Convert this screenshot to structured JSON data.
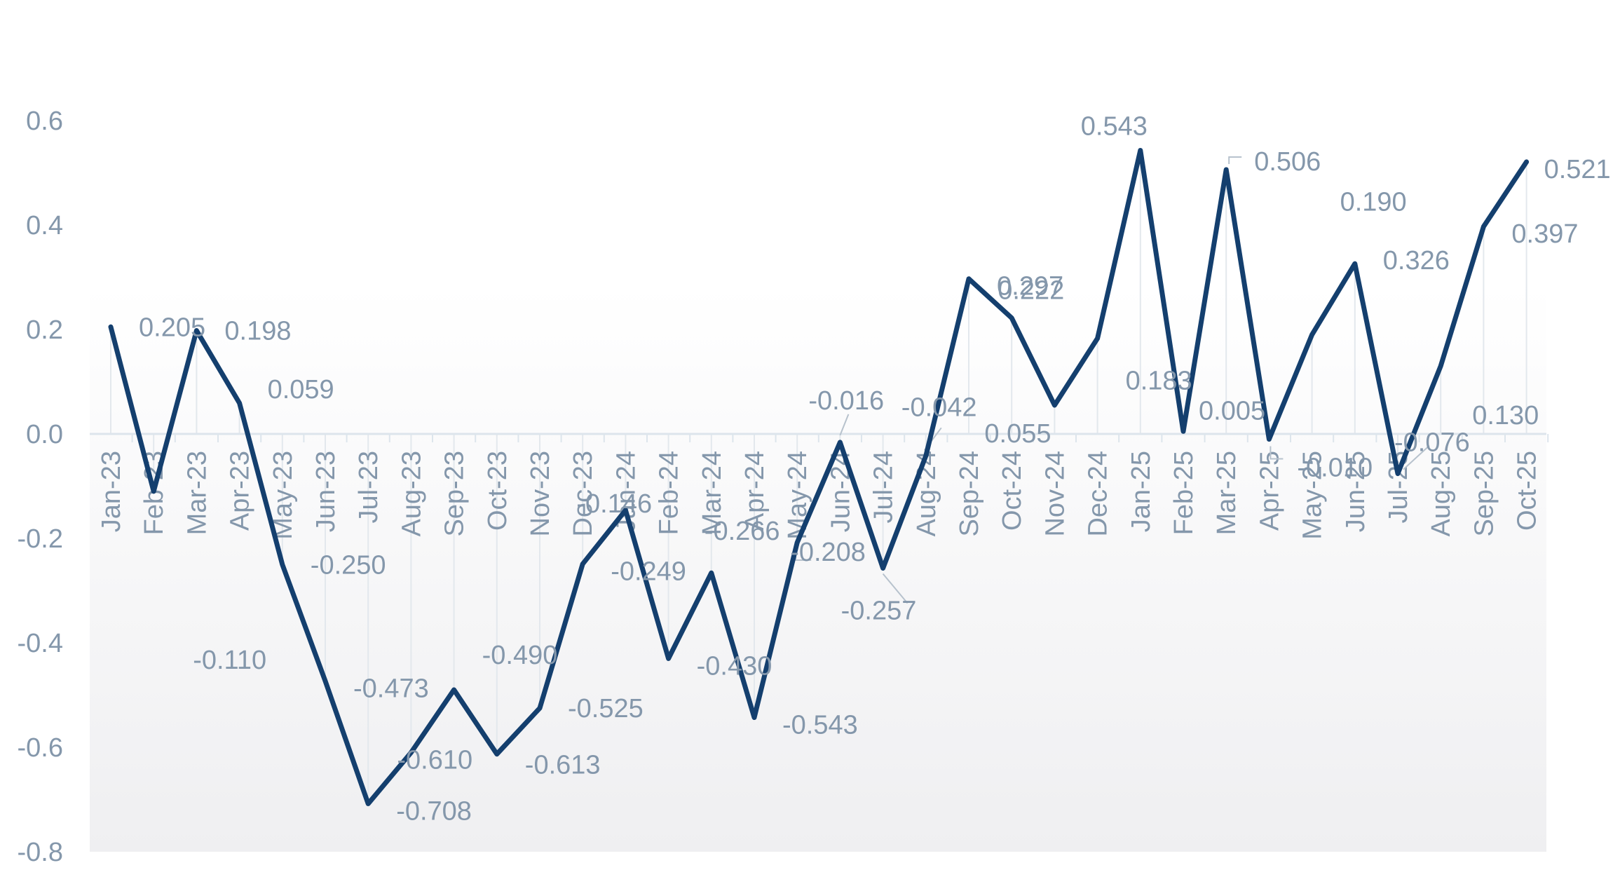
{
  "chart_data": {
    "type": "line",
    "title": "",
    "xlabel": "",
    "ylabel": "",
    "ylim": [
      -0.8,
      0.6
    ],
    "yticks": [
      "0.6",
      "0.4",
      "0.2",
      "0.0",
      "-0.2",
      "-0.4",
      "-0.6",
      "-0.8"
    ],
    "grid": false,
    "legend": "none",
    "line_color": "#143f6e",
    "categories": [
      "Jan-23",
      "Feb-23",
      "Mar-23",
      "Apr-23",
      "May-23",
      "Jun-23",
      "Jul-23",
      "Aug-23",
      "Sep-23",
      "Oct-23",
      "Nov-23",
      "Dec-23",
      "Jan-24",
      "Feb-24",
      "Mar-24",
      "Apr-24",
      "May-24",
      "Jun-24",
      "Jul-24",
      "Aug-24",
      "Sep-24",
      "Oct-24",
      "Nov-24",
      "Dec-24",
      "Jan-25",
      "Feb-25",
      "Mar-25",
      "Apr-25",
      "May-25",
      "Jun-25",
      "Jul-25",
      "Aug-25",
      "Sep-25",
      "Oct-25"
    ],
    "values": [
      0.205,
      -0.11,
      0.198,
      0.059,
      -0.25,
      -0.473,
      -0.708,
      -0.61,
      -0.49,
      -0.613,
      -0.525,
      -0.249,
      -0.146,
      -0.43,
      -0.266,
      -0.543,
      -0.208,
      -0.016,
      -0.257,
      -0.042,
      0.297,
      0.222,
      0.055,
      0.183,
      0.543,
      0.005,
      0.506,
      -0.01,
      0.19,
      0.326,
      -0.076,
      0.13,
      0.397,
      0.521
    ],
    "data_labels": [
      "0.205",
      "-0.110",
      "0.198",
      "0.059",
      "-0.250",
      "-0.473",
      "-0.708",
      "-0.610",
      "-0.490",
      "-0.613",
      "-0.525",
      "-0.249",
      "-0.146",
      "-0.430",
      "-0.266",
      "-0.543",
      "-0.208",
      "-0.016",
      "-0.257",
      "-0.042",
      "0.297",
      "0.222",
      "0.055",
      "0.183",
      "0.543",
      "0.005",
      "0.506",
      "-0.010",
      "0.190",
      "0.326",
      "-0.076",
      "0.130",
      "0.397",
      "0.521"
    ]
  }
}
